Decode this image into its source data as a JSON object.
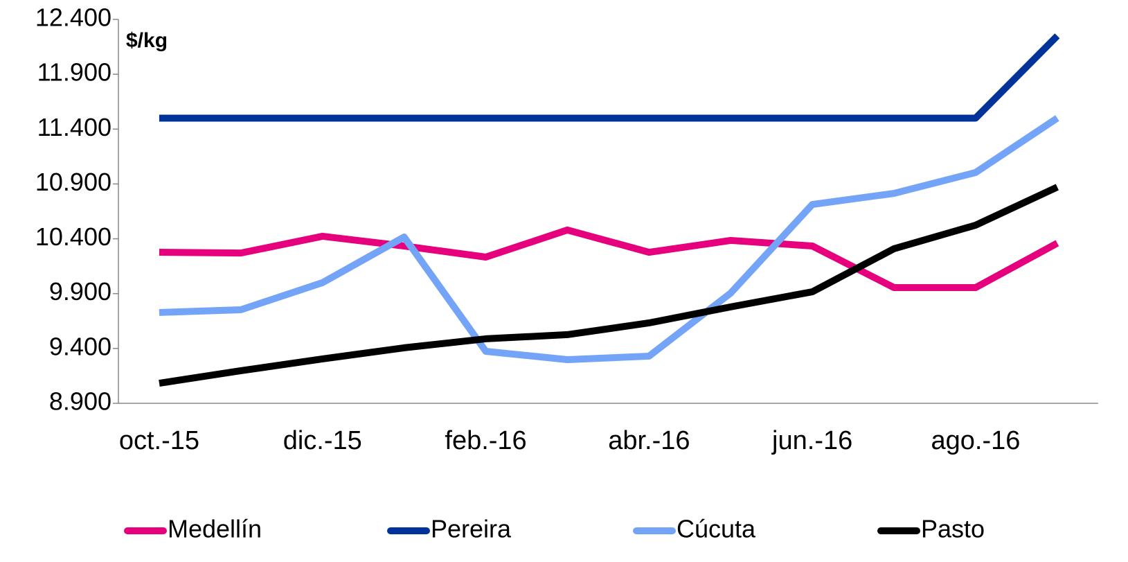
{
  "chart_data": {
    "type": "line",
    "annotation": "$/kg",
    "categories": [
      "oct.-15",
      null,
      "dic.-15",
      null,
      "feb.-16",
      null,
      "abr.-16",
      null,
      "jun.-16",
      null,
      "ago.-16",
      null
    ],
    "series": [
      {
        "name": "Medellín",
        "color": "#e6007e",
        "values": [
          10277,
          10270,
          10423,
          10334,
          10233,
          10480,
          10277,
          10385,
          10334,
          9955,
          9955,
          10360
        ]
      },
      {
        "name": "Pereira",
        "color": "#003399",
        "values": [
          11500,
          11500,
          11500,
          11500,
          11500,
          11500,
          11500,
          11500,
          11500,
          11500,
          11500,
          12250
        ]
      },
      {
        "name": "Cúcuta",
        "color": "#74a4f7",
        "values": [
          9728,
          9753,
          10000,
          10416,
          9374,
          9298,
          9330,
          9905,
          10713,
          10814,
          11004,
          11500
        ]
      },
      {
        "name": "Pasto",
        "color": "#000000",
        "values": [
          9083,
          9197,
          9305,
          9406,
          9488,
          9526,
          9633,
          9779,
          9917,
          10309,
          10524,
          10871
        ]
      }
    ],
    "ylim": [
      8900,
      12400
    ],
    "yticks": [
      {
        "value": 8900,
        "label": "8.900"
      },
      {
        "value": 9400,
        "label": "9.400"
      },
      {
        "value": 9900,
        "label": "9.900"
      },
      {
        "value": 10400,
        "label": "10.400"
      },
      {
        "value": 10900,
        "label": "10.900"
      },
      {
        "value": 11400,
        "label": "11.400"
      },
      {
        "value": 11900,
        "label": "11.900"
      },
      {
        "value": 12400,
        "label": "12.400"
      }
    ],
    "grid": false,
    "legend": "bottom"
  }
}
